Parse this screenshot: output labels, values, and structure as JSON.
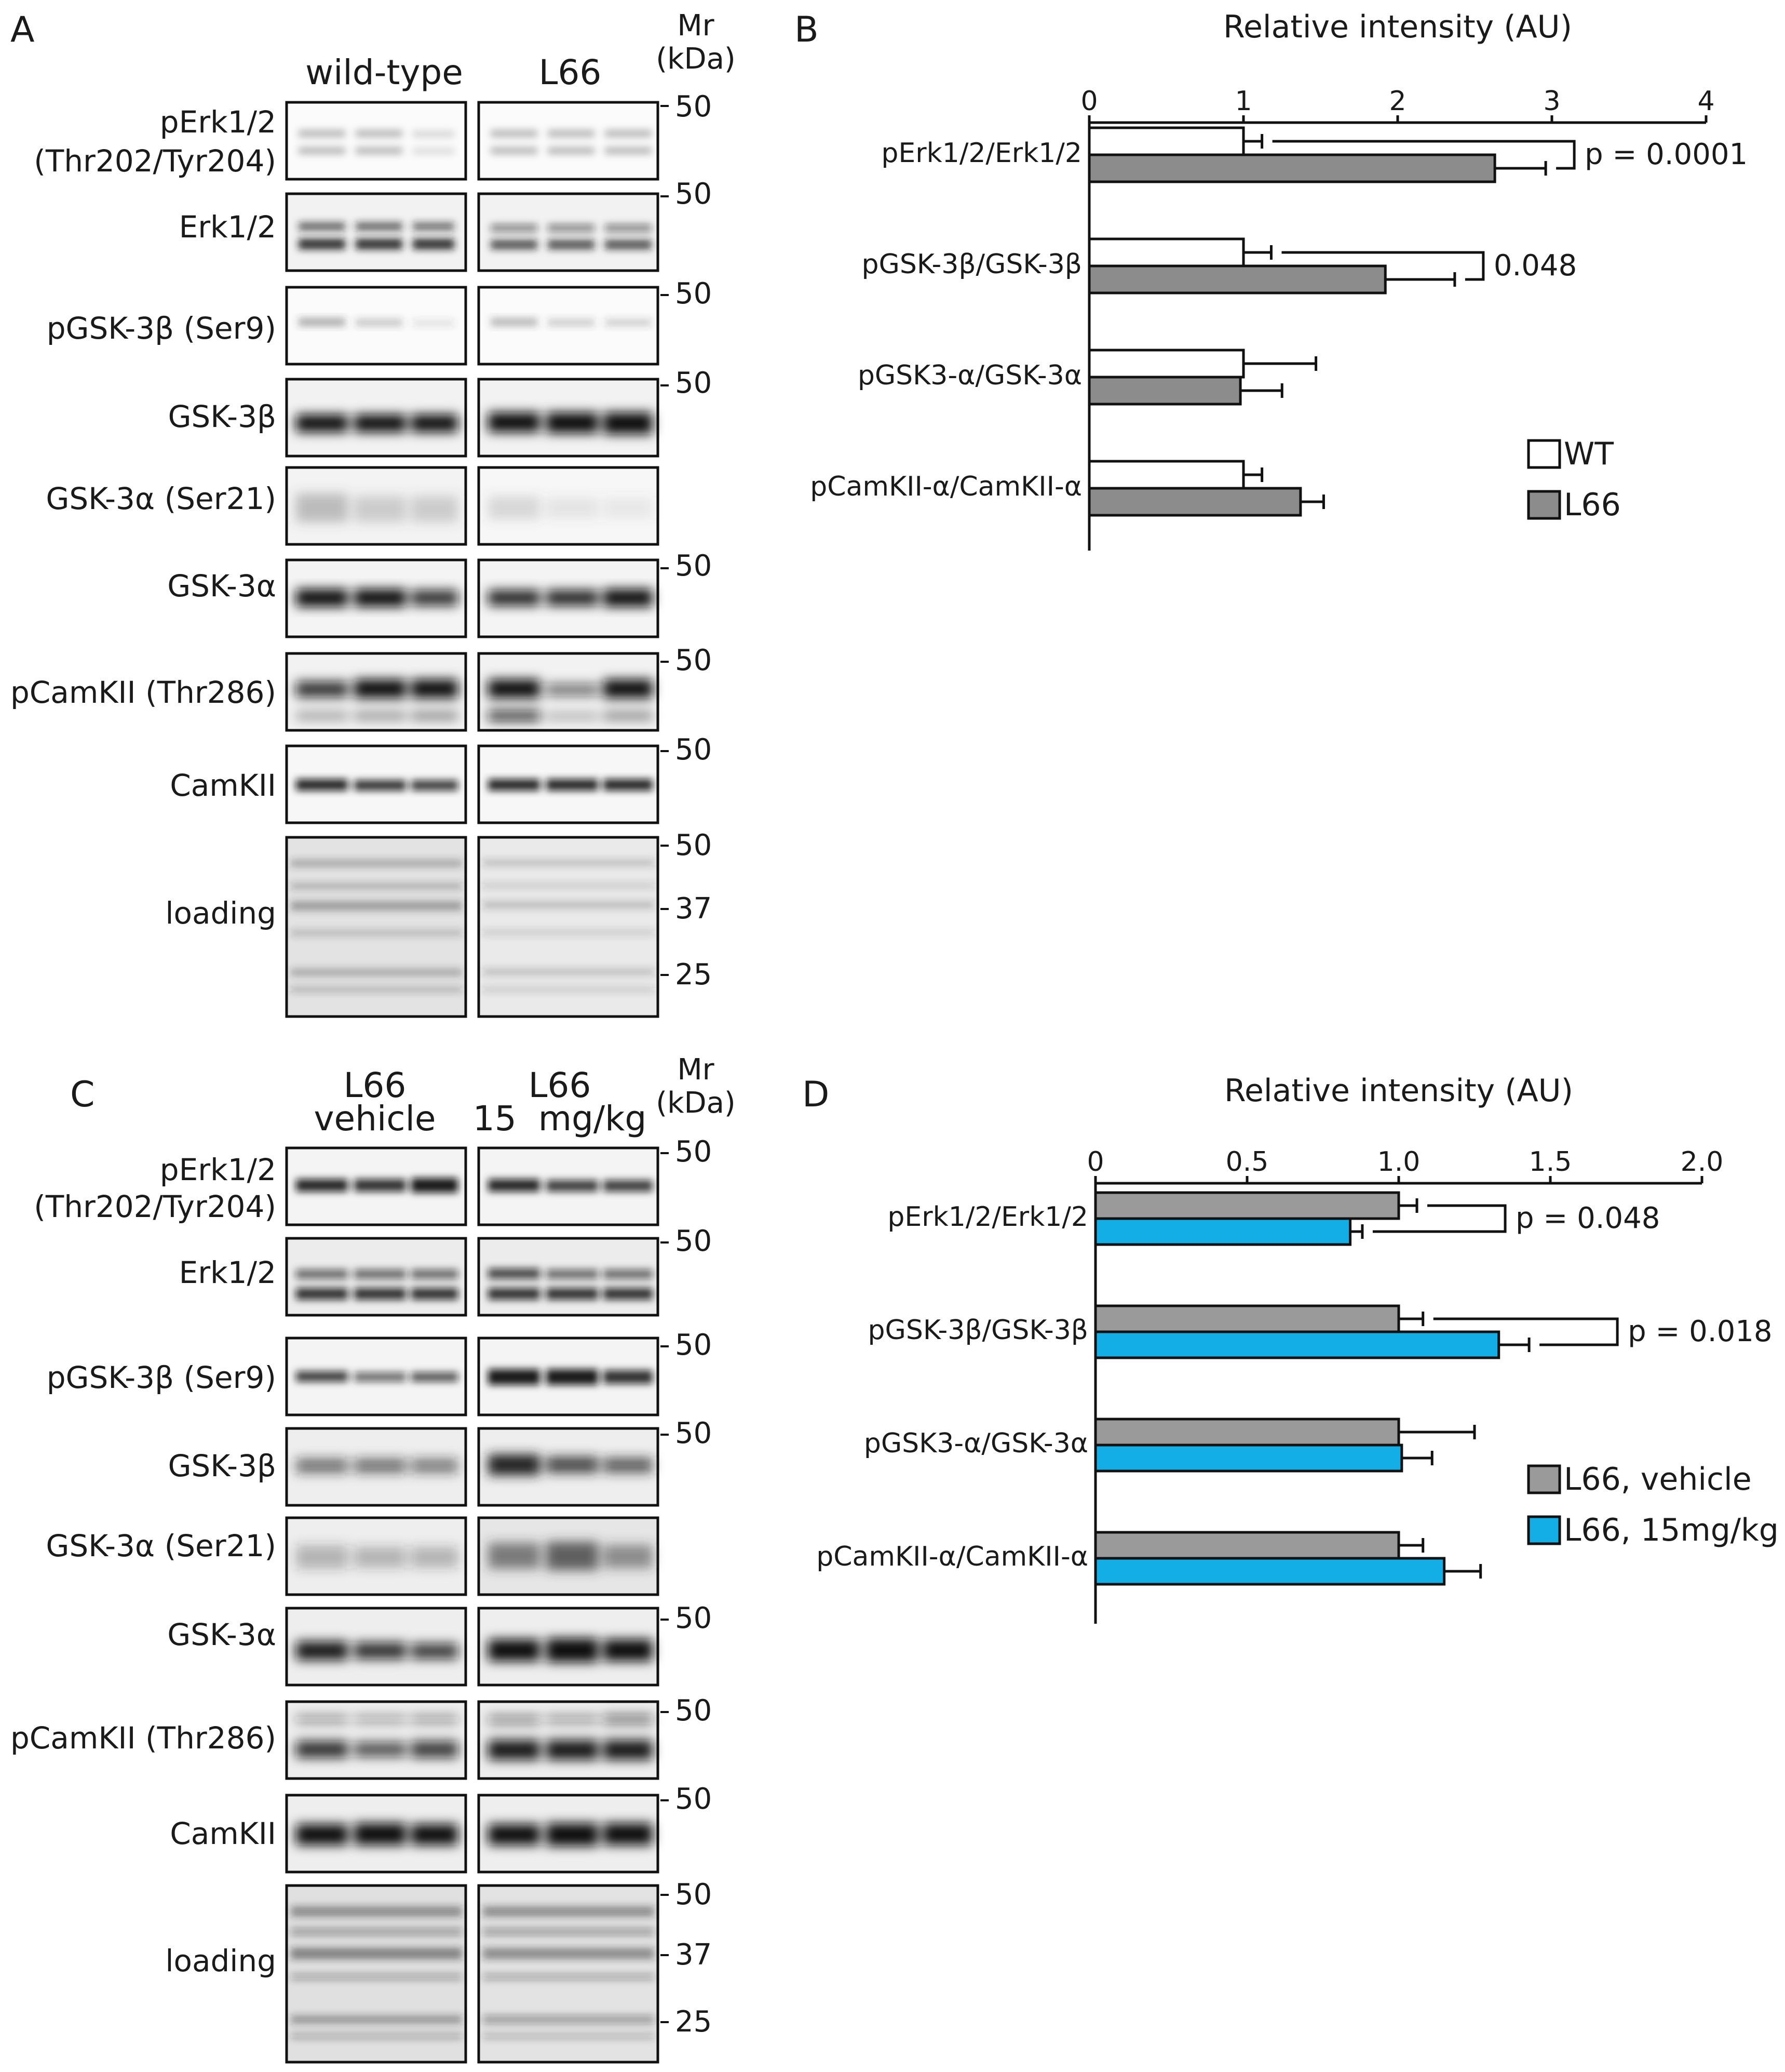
{
  "figure": {
    "panels": {
      "A": {
        "label": "A",
        "groups": [
          "wild-type",
          "L66"
        ],
        "mr_label": [
          "Mr",
          "(kDa)"
        ],
        "rows": [
          {
            "label": [
              "pErk1/2",
              "(Thr202/Tyr204)"
            ],
            "markers": [
              "50"
            ]
          },
          {
            "label": [
              "Erk1/2"
            ],
            "markers": [
              "50"
            ]
          },
          {
            "label": [
              "pGSK-3β (Ser9)"
            ],
            "markers": [
              "50"
            ]
          },
          {
            "label": [
              "GSK-3β"
            ],
            "markers": [
              "50"
            ]
          },
          {
            "label": [
              "GSK-3α (Ser21)"
            ],
            "markers": []
          },
          {
            "label": [
              "GSK-3α"
            ],
            "markers": [
              "50"
            ]
          },
          {
            "label": [
              "pCamKII (Thr286)"
            ],
            "markers": [
              "50"
            ]
          },
          {
            "label": [
              "CamKII"
            ],
            "markers": [
              "50"
            ]
          },
          {
            "label": [
              "loading"
            ],
            "markers": [
              "50",
              "37",
              "25"
            ]
          }
        ]
      },
      "C": {
        "label": "C",
        "groups": [
          [
            "L66",
            "vehicle"
          ],
          [
            "L66",
            "15  mg/kg"
          ]
        ],
        "mr_label": [
          "Mr",
          "(kDa)"
        ],
        "rows": [
          {
            "label": [
              "pErk1/2",
              "(Thr202/Tyr204)"
            ],
            "markers": [
              "50"
            ]
          },
          {
            "label": [
              "Erk1/2"
            ],
            "markers": [
              "50"
            ]
          },
          {
            "label": [
              "pGSK-3β (Ser9)"
            ],
            "markers": [
              "50"
            ]
          },
          {
            "label": [
              "GSK-3β"
            ],
            "markers": [
              "50"
            ]
          },
          {
            "label": [
              "GSK-3α (Ser21)"
            ],
            "markers": []
          },
          {
            "label": [
              "GSK-3α"
            ],
            "markers": [
              "50"
            ]
          },
          {
            "label": [
              "pCamKII (Thr286)"
            ],
            "markers": [
              "50"
            ]
          },
          {
            "label": [
              "CamKII"
            ],
            "markers": [
              "50"
            ]
          },
          {
            "label": [
              "loading"
            ],
            "markers": [
              "50",
              "37",
              "25"
            ]
          }
        ]
      }
    }
  },
  "chart_data": [
    {
      "panel": "B",
      "type": "bar",
      "orientation": "horizontal",
      "title": "Relative intensity (AU)",
      "xlabel": "Relative intensity (AU)",
      "xlim": [
        0,
        4
      ],
      "ticks": [
        "0",
        "1",
        "2",
        "3",
        "4"
      ],
      "categories": [
        "pErk1/2/Erk1/2",
        "pGSK-3β/GSK-3β",
        "pGSK3-α/GSK-3α",
        "pCamKII-α/CamKII-α"
      ],
      "series": [
        {
          "name": "WT",
          "color": "#ffffff",
          "values": [
            1.0,
            1.0,
            1.0,
            1.0
          ],
          "errors": [
            0.12,
            0.18,
            0.47,
            0.12
          ]
        },
        {
          "name": "L66",
          "color": "#8c8c8c",
          "values": [
            2.63,
            1.92,
            0.98,
            1.37
          ],
          "errors": [
            0.33,
            0.45,
            0.27,
            0.15
          ]
        }
      ],
      "annotations": [
        {
          "text": "p = 0.0001",
          "category": "pErk1/2/Erk1/2"
        },
        {
          "text": "0.048",
          "category": "pGSK-3β/GSK-3β"
        }
      ],
      "legend": "right"
    },
    {
      "panel": "D",
      "type": "bar",
      "orientation": "horizontal",
      "title": "Relative intensity (AU)",
      "xlabel": "Relative intensity (AU)",
      "xlim": [
        0,
        2.0
      ],
      "ticks": [
        "0",
        "0.5",
        "1.0",
        "1.5",
        "2.0"
      ],
      "categories": [
        "pErk1/2/Erk1/2",
        "pGSK-3β/GSK-3β",
        "pGSK3-α/GSK-3α",
        "pCamKII-α/CamKII-α"
      ],
      "series": [
        {
          "name": "L66, vehicle",
          "color": "#9a9a9a",
          "values": [
            1.0,
            1.0,
            1.0,
            1.0
          ],
          "errors": [
            0.06,
            0.08,
            0.25,
            0.08
          ]
        },
        {
          "name": "L66, 15mg/kg",
          "color": "#13aee6",
          "values": [
            0.84,
            1.33,
            1.01,
            1.15
          ],
          "errors": [
            0.04,
            0.1,
            0.1,
            0.12
          ]
        }
      ],
      "annotations": [
        {
          "text": "p = 0.048",
          "category": "pErk1/2/Erk1/2"
        },
        {
          "text": "p = 0.018",
          "category": "pGSK-3β/GSK-3β"
        }
      ],
      "legend": "right"
    }
  ]
}
